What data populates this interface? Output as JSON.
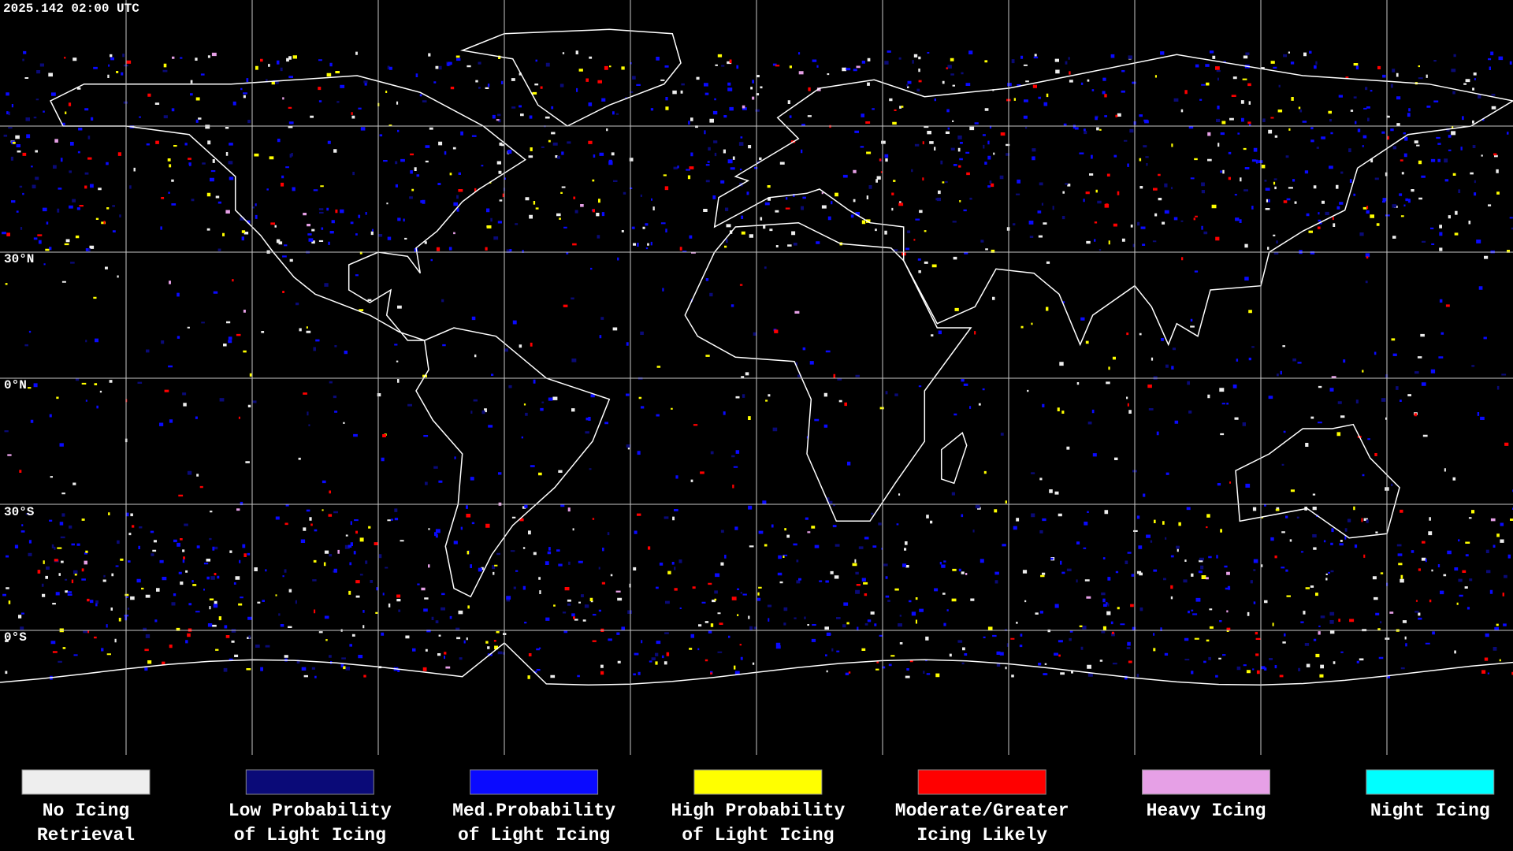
{
  "header": {
    "timestamp": "2025.142 02:00 UTC"
  },
  "map": {
    "latitude_labels": [
      "30°N",
      "0°N",
      "30°S",
      "0°S"
    ]
  },
  "legend": {
    "items": [
      {
        "color": "#eeeeee",
        "label_lines": [
          "No Icing",
          "Retrieval"
        ]
      },
      {
        "color": "#0a0a78",
        "label_lines": [
          "Low Probability",
          "of Light Icing"
        ]
      },
      {
        "color": "#0a0aff",
        "label_lines": [
          "Med.Probability",
          "of Light Icing"
        ]
      },
      {
        "color": "#ffff00",
        "label_lines": [
          "High Probability",
          "of Light Icing"
        ]
      },
      {
        "color": "#ff0000",
        "label_lines": [
          "Moderate/Greater",
          "Icing Likely"
        ]
      },
      {
        "color": "#e6a0e6",
        "label_lines": [
          "Heavy Icing"
        ]
      },
      {
        "color": "#00ffff",
        "label_lines": [
          "Night Icing"
        ]
      }
    ]
  }
}
